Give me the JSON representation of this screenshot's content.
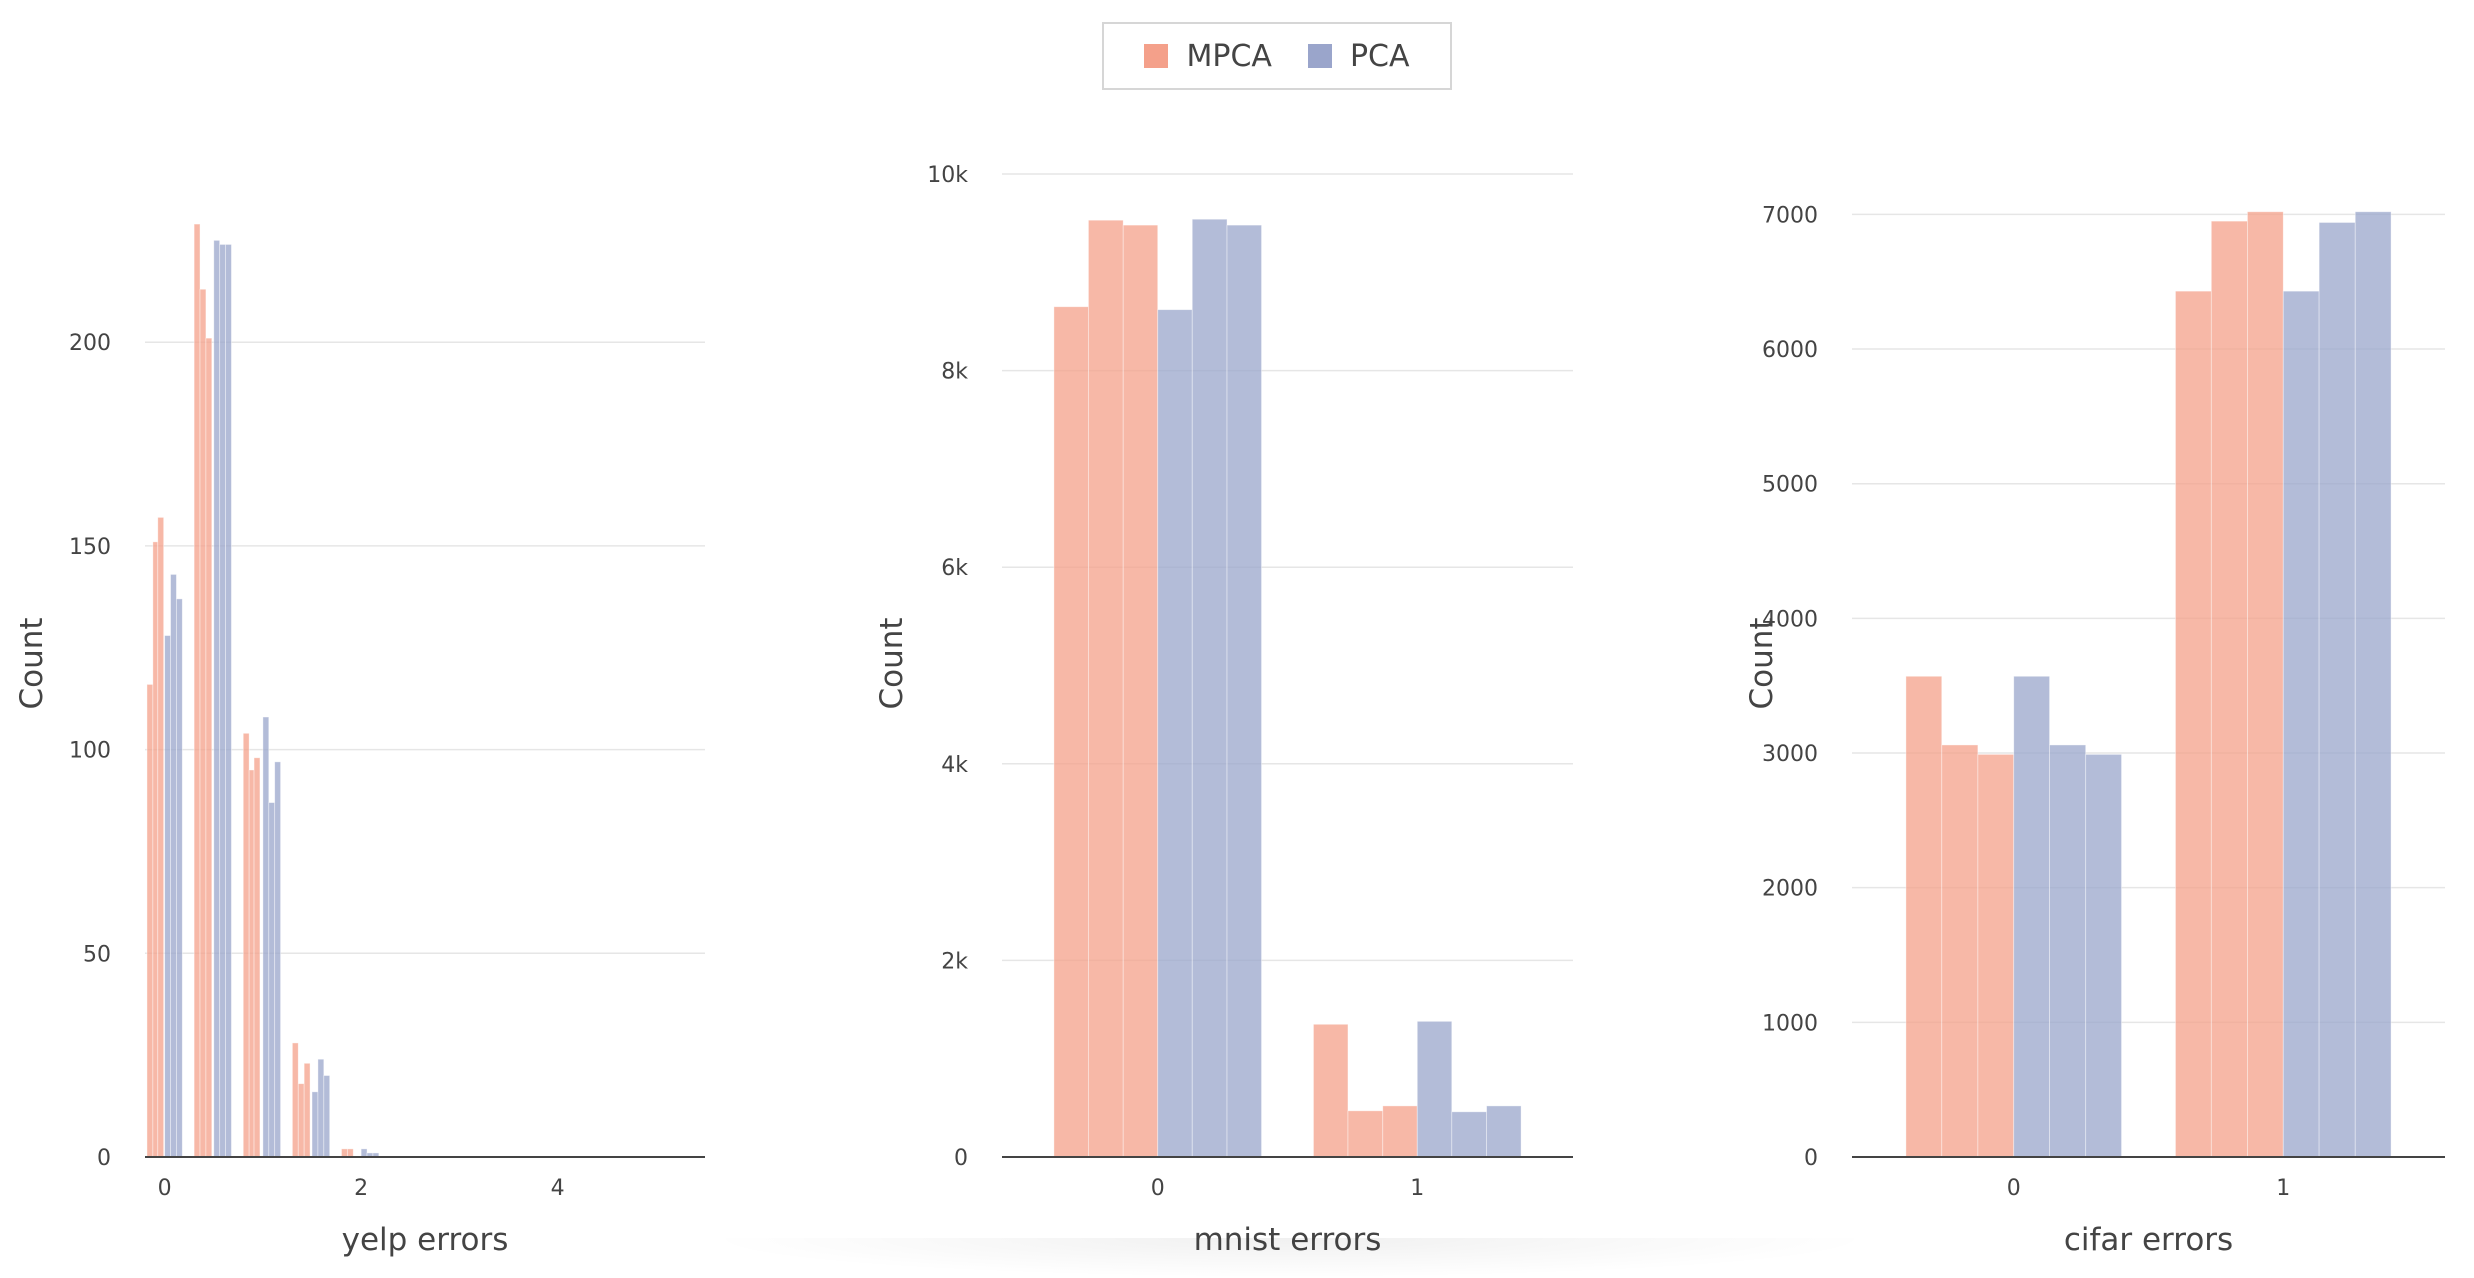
{
  "legend": {
    "items": [
      {
        "name": "MPCA",
        "color": "#f4a08a"
      },
      {
        "name": "PCA",
        "color": "#9aa5cb"
      }
    ]
  },
  "chart_data": [
    {
      "type": "bar",
      "xlabel": "yelp errors",
      "ylabel": "Count",
      "xlim": [
        -0.2,
        5.5
      ],
      "ylim": [
        0,
        230
      ],
      "yticks": [
        0,
        50,
        100,
        150,
        200
      ],
      "ytick_labels": [
        "0",
        "50",
        "100",
        "150",
        "200"
      ],
      "xticks": [
        0,
        2,
        4
      ],
      "xtick_labels": [
        "0",
        "2",
        "4"
      ],
      "grid": true,
      "series": [
        {
          "name": "MPCA",
          "color": "#f4a08a",
          "bars": [
            {
              "x0": -0.18,
              "x1": -0.12,
              "y": 116
            },
            {
              "x0": -0.12,
              "x1": -0.07,
              "y": 151
            },
            {
              "x0": -0.07,
              "x1": -0.01,
              "y": 157
            },
            {
              "x0": 0.3,
              "x1": 0.36,
              "y": 229
            },
            {
              "x0": 0.36,
              "x1": 0.42,
              "y": 213
            },
            {
              "x0": 0.42,
              "x1": 0.48,
              "y": 201
            },
            {
              "x0": 0.8,
              "x1": 0.86,
              "y": 104
            },
            {
              "x0": 0.86,
              "x1": 0.91,
              "y": 95
            },
            {
              "x0": 0.91,
              "x1": 0.97,
              "y": 98
            },
            {
              "x0": 1.3,
              "x1": 1.36,
              "y": 28
            },
            {
              "x0": 1.36,
              "x1": 1.42,
              "y": 18
            },
            {
              "x0": 1.42,
              "x1": 1.48,
              "y": 23
            },
            {
              "x0": 1.8,
              "x1": 1.86,
              "y": 2
            },
            {
              "x0": 1.86,
              "x1": 1.92,
              "y": 2
            }
          ]
        },
        {
          "name": "PCA",
          "color": "#9aa5cb",
          "bars": [
            {
              "x0": 0.0,
              "x1": 0.06,
              "y": 128
            },
            {
              "x0": 0.06,
              "x1": 0.12,
              "y": 143
            },
            {
              "x0": 0.12,
              "x1": 0.18,
              "y": 137
            },
            {
              "x0": 0.5,
              "x1": 0.56,
              "y": 225
            },
            {
              "x0": 0.56,
              "x1": 0.62,
              "y": 224
            },
            {
              "x0": 0.62,
              "x1": 0.68,
              "y": 224
            },
            {
              "x0": 1.0,
              "x1": 1.06,
              "y": 108
            },
            {
              "x0": 1.06,
              "x1": 1.12,
              "y": 87
            },
            {
              "x0": 1.12,
              "x1": 1.18,
              "y": 97
            },
            {
              "x0": 1.5,
              "x1": 1.56,
              "y": 16
            },
            {
              "x0": 1.56,
              "x1": 1.62,
              "y": 24
            },
            {
              "x0": 1.62,
              "x1": 1.68,
              "y": 20
            },
            {
              "x0": 2.0,
              "x1": 2.06,
              "y": 2
            },
            {
              "x0": 2.06,
              "x1": 2.12,
              "y": 1
            },
            {
              "x0": 2.12,
              "x1": 2.18,
              "y": 1
            }
          ]
        }
      ]
    },
    {
      "type": "bar",
      "xlabel": "mnist errors",
      "ylabel": "Count",
      "xlim": [
        -0.6,
        1.6
      ],
      "ylim": [
        0,
        10000
      ],
      "yticks": [
        0,
        2000,
        4000,
        6000,
        8000,
        10000
      ],
      "ytick_labels": [
        "0",
        "2k",
        "4k",
        "6k",
        "8k",
        "10k"
      ],
      "xticks": [
        0,
        1
      ],
      "xtick_labels": [
        "0",
        "1"
      ],
      "grid": true,
      "series": [
        {
          "name": "MPCA",
          "color": "#f4a08a",
          "bars": [
            {
              "x0": -0.4,
              "x1": -0.267,
              "y": 8650
            },
            {
              "x0": -0.267,
              "x1": -0.133,
              "y": 9530
            },
            {
              "x0": -0.133,
              "x1": 0.0,
              "y": 9480
            },
            {
              "x0": 0.6,
              "x1": 0.733,
              "y": 1350
            },
            {
              "x0": 0.733,
              "x1": 0.867,
              "y": 470
            },
            {
              "x0": 0.867,
              "x1": 1.0,
              "y": 520
            }
          ]
        },
        {
          "name": "PCA",
          "color": "#9aa5cb",
          "bars": [
            {
              "x0": 0.0,
              "x1": 0.133,
              "y": 8620
            },
            {
              "x0": 0.133,
              "x1": 0.267,
              "y": 9540
            },
            {
              "x0": 0.267,
              "x1": 0.4,
              "y": 9480
            },
            {
              "x0": 1.0,
              "x1": 1.133,
              "y": 1380
            },
            {
              "x0": 1.133,
              "x1": 1.267,
              "y": 460
            },
            {
              "x0": 1.267,
              "x1": 1.4,
              "y": 520
            }
          ]
        }
      ]
    },
    {
      "type": "bar",
      "xlabel": "cifar errors",
      "ylabel": "Count",
      "xlim": [
        -0.6,
        1.6
      ],
      "ylim": [
        0,
        7300
      ],
      "yticks": [
        0,
        1000,
        2000,
        3000,
        4000,
        5000,
        6000,
        7000
      ],
      "ytick_labels": [
        "0",
        "1000",
        "2000",
        "3000",
        "4000",
        "5000",
        "6000",
        "7000"
      ],
      "xticks": [
        0,
        1
      ],
      "xtick_labels": [
        "0",
        "1"
      ],
      "grid": true,
      "series": [
        {
          "name": "MPCA",
          "color": "#f4a08a",
          "bars": [
            {
              "x0": -0.4,
              "x1": -0.267,
              "y": 3570
            },
            {
              "x0": -0.267,
              "x1": -0.133,
              "y": 3060
            },
            {
              "x0": -0.133,
              "x1": 0.0,
              "y": 2990
            },
            {
              "x0": 0.6,
              "x1": 0.733,
              "y": 6430
            },
            {
              "x0": 0.733,
              "x1": 0.867,
              "y": 6950
            },
            {
              "x0": 0.867,
              "x1": 1.0,
              "y": 7020
            }
          ]
        },
        {
          "name": "PCA",
          "color": "#9aa5cb",
          "bars": [
            {
              "x0": 0.0,
              "x1": 0.133,
              "y": 3570
            },
            {
              "x0": 0.133,
              "x1": 0.267,
              "y": 3060
            },
            {
              "x0": 0.267,
              "x1": 0.4,
              "y": 2990
            },
            {
              "x0": 1.0,
              "x1": 1.133,
              "y": 6430
            },
            {
              "x0": 1.133,
              "x1": 1.267,
              "y": 6940
            },
            {
              "x0": 1.267,
              "x1": 1.4,
              "y": 7020
            }
          ]
        }
      ]
    }
  ]
}
